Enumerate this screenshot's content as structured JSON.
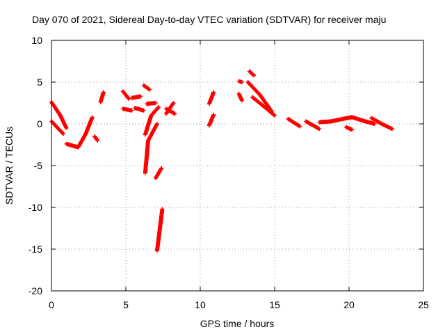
{
  "chart_data": {
    "type": "scatter",
    "title": "Day 070 of 2021, Sidereal Day-to-day VTEC variation (SDTVAR) for receiver maju",
    "xlabel": "GPS time / hours",
    "ylabel": "SDTVAR / TECUs",
    "xlim": [
      0,
      25
    ],
    "ylim": [
      -20,
      10
    ],
    "xticks": [
      0,
      5,
      10,
      15,
      20,
      25
    ],
    "yticks": [
      -20,
      -15,
      -10,
      -5,
      0,
      5,
      10
    ],
    "xtick_labels": [
      "0",
      "5",
      "10",
      "15",
      "20",
      "25"
    ],
    "ytick_labels": [
      "-20",
      "-15",
      "-10",
      "-5",
      "0",
      "5",
      "10"
    ],
    "grid": true,
    "marker": "plus",
    "color": "#ff0000",
    "segments": [
      {
        "x0": 0.0,
        "y0": 2.6,
        "x1": 0.6,
        "y1": 1.0
      },
      {
        "x0": 0.0,
        "y0": 0.3,
        "x1": 0.8,
        "y1": -1.2
      },
      {
        "x0": 0.6,
        "y0": 1.0,
        "x1": 1.0,
        "y1": -0.5
      },
      {
        "x0": 1.0,
        "y0": -2.4,
        "x1": 1.8,
        "y1": -2.8
      },
      {
        "x0": 1.8,
        "y0": -2.8,
        "x1": 2.3,
        "y1": -1.2
      },
      {
        "x0": 2.3,
        "y0": -1.2,
        "x1": 2.75,
        "y1": 0.8
      },
      {
        "x0": 2.9,
        "y0": -1.5,
        "x1": 3.1,
        "y1": -2.0
      },
      {
        "x0": 3.3,
        "y0": 2.6,
        "x1": 3.5,
        "y1": 3.8
      },
      {
        "x0": 4.8,
        "y0": 3.9,
        "x1": 5.2,
        "y1": 3.0
      },
      {
        "x0": 4.8,
        "y0": 1.8,
        "x1": 5.4,
        "y1": 1.6
      },
      {
        "x0": 5.4,
        "y0": 3.1,
        "x1": 6.0,
        "y1": 3.3
      },
      {
        "x0": 5.6,
        "y0": 1.9,
        "x1": 6.2,
        "y1": 1.6
      },
      {
        "x0": 6.2,
        "y0": 4.6,
        "x1": 6.6,
        "y1": 4.1
      },
      {
        "x0": 6.4,
        "y0": 2.4,
        "x1": 7.0,
        "y1": 2.5
      },
      {
        "x0": 6.3,
        "y0": -1.3,
        "x1": 6.7,
        "y1": 1.0
      },
      {
        "x0": 6.7,
        "y0": 1.0,
        "x1": 7.2,
        "y1": 2.0
      },
      {
        "x0": 6.3,
        "y0": -5.9,
        "x1": 6.5,
        "y1": -2.0
      },
      {
        "x0": 6.5,
        "y0": -2.0,
        "x1": 7.1,
        "y1": 0.0
      },
      {
        "x0": 7.0,
        "y0": -6.5,
        "x1": 7.4,
        "y1": -5.3
      },
      {
        "x0": 7.1,
        "y0": -15.2,
        "x1": 7.45,
        "y1": -10.2
      },
      {
        "x0": 7.7,
        "y0": 1.2,
        "x1": 8.2,
        "y1": 2.5
      },
      {
        "x0": 7.7,
        "y0": 1.8,
        "x1": 8.3,
        "y1": 1.2
      },
      {
        "x0": 10.6,
        "y0": 2.4,
        "x1": 10.9,
        "y1": 3.8
      },
      {
        "x0": 10.6,
        "y0": -0.2,
        "x1": 10.9,
        "y1": 1.1
      },
      {
        "x0": 12.6,
        "y0": 5.1,
        "x1": 12.8,
        "y1": 5.0
      },
      {
        "x0": 12.6,
        "y0": 3.6,
        "x1": 12.8,
        "y1": 2.8
      },
      {
        "x0": 13.3,
        "y0": 6.3,
        "x1": 13.6,
        "y1": 5.8
      },
      {
        "x0": 13.2,
        "y0": 5.0,
        "x1": 14.0,
        "y1": 3.5
      },
      {
        "x0": 14.0,
        "y0": 3.5,
        "x1": 14.8,
        "y1": 1.5
      },
      {
        "x0": 13.5,
        "y0": 3.2,
        "x1": 14.2,
        "y1": 2.2
      },
      {
        "x0": 14.2,
        "y0": 2.2,
        "x1": 15.0,
        "y1": 1.0
      },
      {
        "x0": 15.9,
        "y0": 0.6,
        "x1": 16.7,
        "y1": -0.3
      },
      {
        "x0": 17.1,
        "y0": 0.3,
        "x1": 18.0,
        "y1": -0.6
      },
      {
        "x0": 18.0,
        "y0": 0.2,
        "x1": 18.8,
        "y1": 0.3
      },
      {
        "x0": 18.8,
        "y0": 0.3,
        "x1": 19.6,
        "y1": 0.6
      },
      {
        "x0": 19.6,
        "y0": 0.6,
        "x1": 20.2,
        "y1": 0.8
      },
      {
        "x0": 19.8,
        "y0": -0.4,
        "x1": 20.2,
        "y1": -0.7
      },
      {
        "x0": 20.2,
        "y0": 0.8,
        "x1": 20.9,
        "y1": 0.4
      },
      {
        "x0": 20.9,
        "y0": 0.4,
        "x1": 21.7,
        "y1": 0.0
      },
      {
        "x0": 21.5,
        "y0": 0.7,
        "x1": 22.3,
        "y1": -0.1
      },
      {
        "x0": 22.3,
        "y0": -0.1,
        "x1": 22.9,
        "y1": -0.6
      }
    ]
  }
}
